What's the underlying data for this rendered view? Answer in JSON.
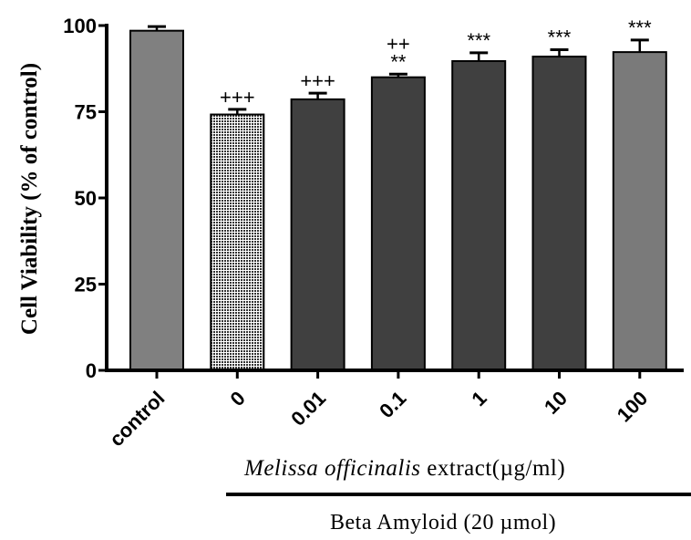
{
  "chart_data": {
    "type": "bar",
    "ylabel": "Cell Viability (% of control)",
    "ylim": [
      0,
      100
    ],
    "yticks": [
      "0",
      "25",
      "50",
      "75",
      "100"
    ],
    "categories": [
      "control",
      "0",
      "0.01",
      "0.1",
      "1",
      "10",
      "100"
    ],
    "values": [
      98.5,
      74.2,
      78.6,
      85.0,
      89.7,
      91.0,
      92.3
    ],
    "errors": [
      1.2,
      1.5,
      1.8,
      0.9,
      2.4,
      2.0,
      3.5
    ],
    "bar_colors": [
      "#808080",
      "#dcdcdc",
      "#404040",
      "#404040",
      "#404040",
      "#404040",
      "#7a7a7a"
    ],
    "bar_patterns": [
      "solid",
      "dotted",
      "solid",
      "solid",
      "solid",
      "solid",
      "solid"
    ],
    "annotations": [
      [],
      [
        "+++"
      ],
      [
        "+++"
      ],
      [
        "**",
        "++"
      ],
      [
        "***"
      ],
      [
        "***"
      ],
      [
        "***"
      ]
    ],
    "extract_label": {
      "species": "Melissa officinalis",
      "rest": " extract(µg/ml)"
    },
    "treatment_label": "Beta Amyloid (20 µmol)"
  }
}
